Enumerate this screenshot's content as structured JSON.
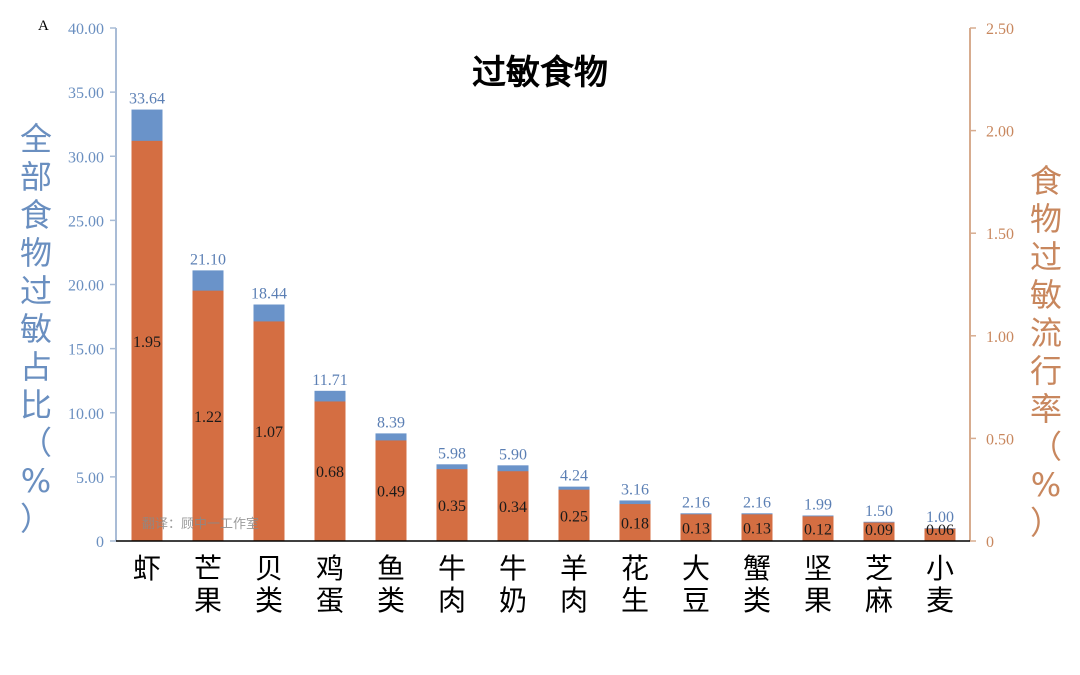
{
  "chart_data": {
    "type": "bar",
    "panel_label": "A",
    "title": "过敏食物",
    "ylabel_left": "全部食物过敏占比（%）",
    "ylabel_right": "食物过敏流行率（%）",
    "watermark": "翻译：顾中一工作室",
    "categories": [
      "虾",
      "芒果",
      "贝类",
      "鸡蛋",
      "鱼类",
      "牛肉",
      "牛奶",
      "羊肉",
      "花生",
      "大豆",
      "蟹类",
      "坚果",
      "芝麻",
      "小麦"
    ],
    "series": [
      {
        "axis": "left",
        "color": "#6a93c9",
        "values": [
          33.64,
          21.1,
          18.44,
          11.71,
          8.39,
          5.98,
          5.9,
          4.24,
          3.16,
          2.16,
          2.16,
          1.99,
          1.5,
          1.0
        ]
      },
      {
        "axis": "right",
        "color": "#d46e42",
        "values": [
          1.95,
          1.22,
          1.07,
          0.68,
          0.49,
          0.35,
          0.34,
          0.25,
          0.18,
          0.13,
          0.13,
          0.12,
          0.09,
          0.06
        ]
      }
    ],
    "ylim_left": [
      0,
      40
    ],
    "yticks_left": [
      "0",
      "5.00",
      "10.00",
      "15.00",
      "20.00",
      "25.00",
      "30.00",
      "35.00",
      "40.00"
    ],
    "ylim_right": [
      0,
      2.5
    ],
    "yticks_right": [
      "0",
      "0.50",
      "1.00",
      "1.50",
      "2.00",
      "2.50"
    ],
    "left_axis_color": "#6a8fc0",
    "right_axis_color": "#c8875e",
    "grid": false
  }
}
